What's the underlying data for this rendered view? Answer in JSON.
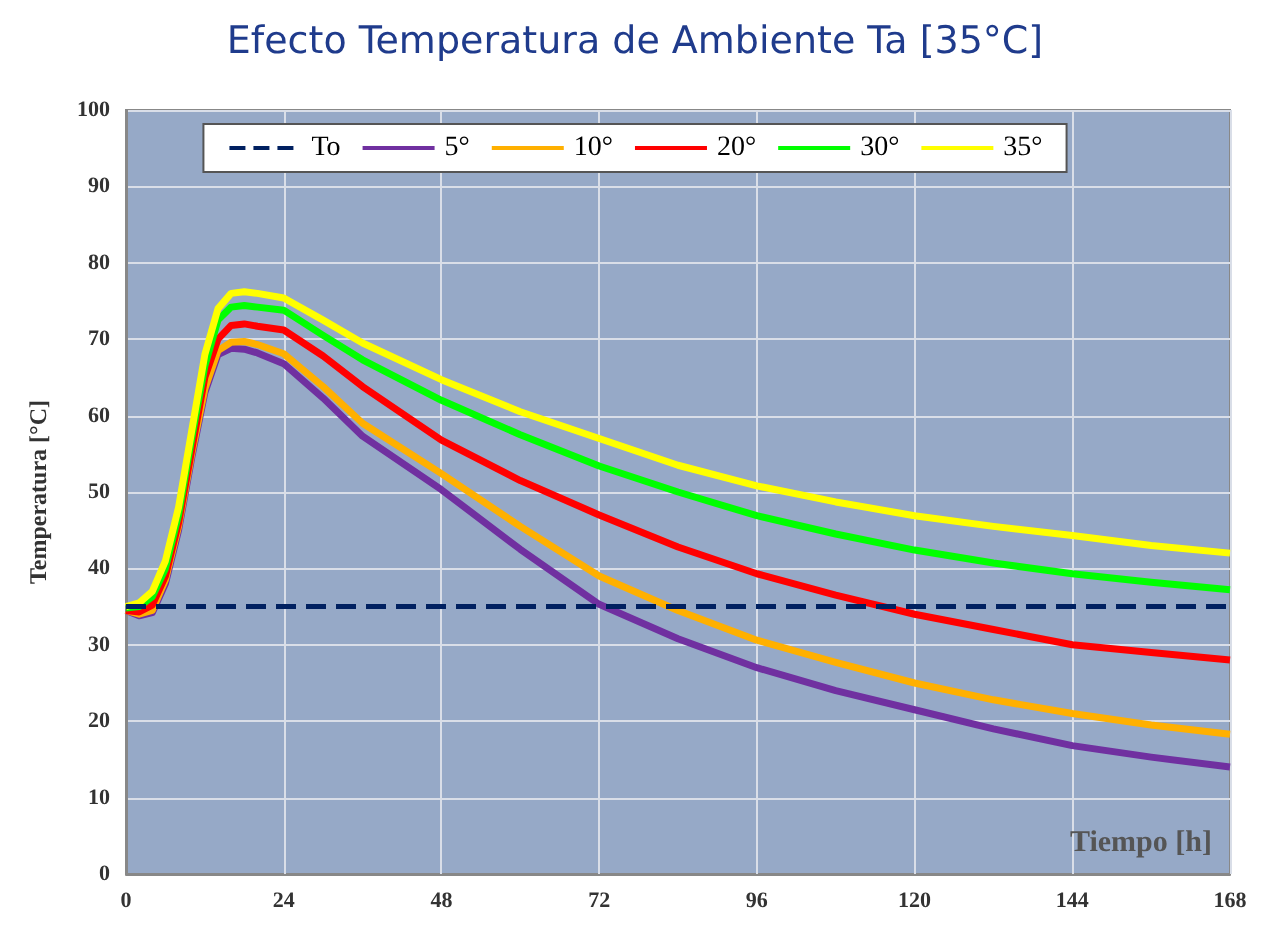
{
  "chart_data": {
    "type": "line",
    "title": "Efecto Temperatura de Ambiente Ta [35°C]",
    "xlabel": "Tiempo [h]",
    "ylabel": "Temperatura [°C]",
    "x": [
      0,
      2,
      4,
      6,
      8,
      10,
      12,
      14,
      16,
      18,
      20,
      24,
      30,
      36,
      48,
      60,
      72,
      84,
      96,
      108,
      120,
      132,
      144,
      156,
      168
    ],
    "series": [
      {
        "name": "To",
        "color": "#002060",
        "line_style": "dashed",
        "values": [
          35,
          35,
          35,
          35,
          35,
          35,
          35,
          35,
          35,
          35,
          35,
          35,
          35,
          35,
          35,
          35,
          35,
          35,
          35,
          35,
          35,
          35,
          35,
          35,
          35
        ]
      },
      {
        "name": "5°",
        "color": "#7030a0",
        "values": [
          34.5,
          33.8,
          34.2,
          38,
          45,
          54.5,
          63,
          68,
          68.8,
          68.7,
          68.2,
          66.8,
          62.3,
          57.3,
          50.3,
          42.5,
          35.3,
          30.8,
          27,
          24,
          21.5,
          19,
          16.8,
          15.3,
          14
        ]
      },
      {
        "name": "10°",
        "color": "#ffb000",
        "values": [
          34.5,
          34,
          34.5,
          38.5,
          45.5,
          55,
          63.5,
          68.5,
          69.6,
          69.7,
          69.3,
          68.1,
          63.8,
          59,
          52.4,
          45.5,
          39,
          34.5,
          30.6,
          27.7,
          25,
          22.8,
          21,
          19.5,
          18.3
        ]
      },
      {
        "name": "20°",
        "color": "#ff0000",
        "values": [
          34.5,
          34.3,
          35.2,
          39,
          46,
          55.5,
          65,
          70,
          71.8,
          72,
          71.7,
          71.2,
          67.8,
          63.8,
          56.8,
          51.5,
          47,
          42.8,
          39.3,
          36.5,
          34,
          32,
          30,
          29,
          28
        ]
      },
      {
        "name": "30°",
        "color": "#00ff00",
        "values": [
          34.8,
          35,
          36.3,
          40,
          47,
          57,
          66.5,
          72.5,
          74.2,
          74.4,
          74.2,
          73.8,
          70.5,
          67.3,
          62,
          57.5,
          53.4,
          50,
          46.9,
          44.5,
          42.4,
          40.7,
          39.3,
          38.2,
          37.2
        ]
      },
      {
        "name": "35°",
        "color": "#ffff00",
        "values": [
          35,
          35.5,
          37,
          41,
          48,
          58,
          68,
          74,
          76,
          76.2,
          76,
          75.4,
          72.5,
          69.5,
          64.7,
          60.5,
          57,
          53.5,
          50.8,
          48.7,
          46.9,
          45.5,
          44.3,
          43,
          42
        ]
      }
    ],
    "xlim": [
      0,
      168
    ],
    "xticks": [
      0,
      24,
      48,
      72,
      96,
      120,
      144,
      168
    ],
    "ylim": [
      0,
      100
    ],
    "yticks": [
      0,
      10,
      20,
      30,
      40,
      50,
      60,
      70,
      80,
      90,
      100
    ],
    "grid": true,
    "legend": "top",
    "line_style": "solid",
    "marker": "none"
  }
}
